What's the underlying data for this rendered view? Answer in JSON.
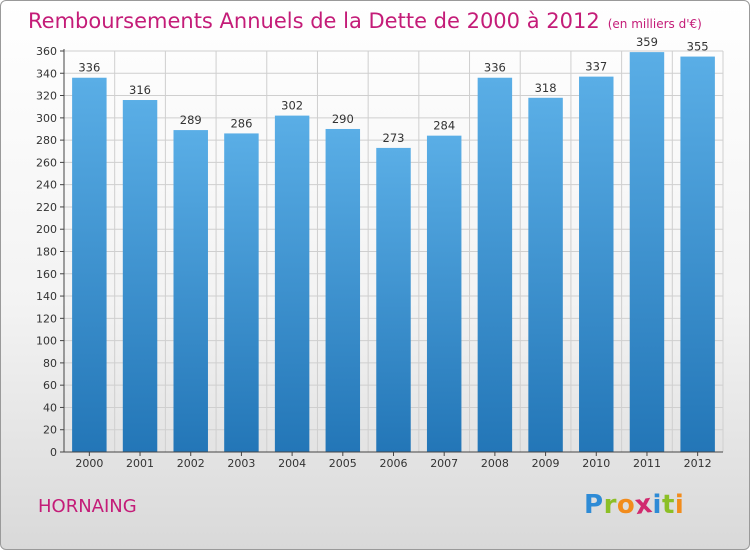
{
  "header": {
    "title": "Remboursements Annuels de la Dette de 2000 à 2012",
    "unit": "(en milliers d'€)"
  },
  "location": "HORNAING",
  "logo": {
    "text": "Proxiti",
    "letters": [
      {
        "ch": "P",
        "color": "#2e8bd6"
      },
      {
        "ch": "r",
        "color": "#8cbf26"
      },
      {
        "ch": "o",
        "color": "#f28c1c"
      },
      {
        "ch": "x",
        "color": "#d12a6e"
      },
      {
        "ch": "i",
        "color": "#2e8bd6"
      },
      {
        "ch": "t",
        "color": "#8cbf26"
      },
      {
        "ch": "i",
        "color": "#f28c1c"
      }
    ]
  },
  "colors": {
    "accent": "#c41c78",
    "bar_top": "#5aaee6",
    "bar_bottom": "#2376b7",
    "grid": "#cfcfcf"
  },
  "chart_data": {
    "type": "bar",
    "title": "Remboursements Annuels de la Dette de 2000 à 2012",
    "subtitle": "(en milliers d'€)",
    "xlabel": "",
    "ylabel": "",
    "categories": [
      "2000",
      "2001",
      "2002",
      "2003",
      "2004",
      "2005",
      "2006",
      "2007",
      "2008",
      "2009",
      "2010",
      "2011",
      "2012"
    ],
    "values": [
      336,
      316,
      289,
      286,
      302,
      290,
      273,
      284,
      336,
      318,
      337,
      359,
      355
    ],
    "ylim": [
      0,
      360
    ],
    "yticks": [
      0,
      20,
      40,
      60,
      80,
      100,
      120,
      140,
      160,
      180,
      200,
      220,
      240,
      260,
      280,
      300,
      320,
      340,
      360
    ],
    "grid": true,
    "legend": "none"
  }
}
